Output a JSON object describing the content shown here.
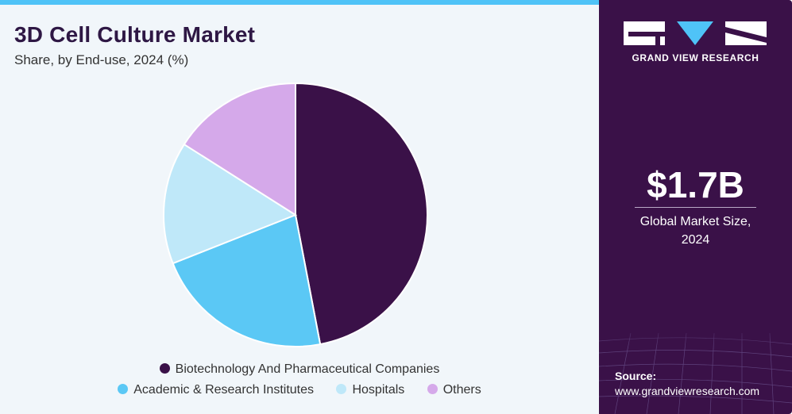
{
  "header": {
    "title": "3D Cell Culture Market",
    "subtitle": "Share, by End-use, 2024 (%)"
  },
  "chart_data": {
    "type": "pie",
    "title": "3D Cell Culture Market",
    "subtitle": "Share, by End-use, 2024 (%)",
    "categories": [
      "Biotechnology And Pharmaceutical Companies",
      "Academic & Research Institutes",
      "Hospitals",
      "Others"
    ],
    "values": [
      47,
      22,
      15,
      16
    ],
    "colors": [
      "#3a1148",
      "#5bc8f5",
      "#bfe8f9",
      "#d5a9ea"
    ],
    "legend_placement": "bottom"
  },
  "legend": {
    "items": [
      {
        "label": "Biotechnology And Pharmaceutical Companies",
        "color": "#3a1148"
      },
      {
        "label": "Academic & Research Institutes",
        "color": "#5bc8f5"
      },
      {
        "label": "Hospitals",
        "color": "#bfe8f9"
      },
      {
        "label": "Others",
        "color": "#d5a9ea"
      }
    ]
  },
  "sidebar": {
    "brand": "GRAND VIEW RESEARCH",
    "stat_value": "$1.7B",
    "stat_label_line1": "Global Market Size,",
    "stat_label_line2": "2024",
    "source_label": "Source:",
    "source_url": "www.grandviewresearch.com"
  },
  "colors": {
    "brand_purple": "#3a1148",
    "accent_blue": "#4fc3f7",
    "panel_bg": "#f1f6fa"
  }
}
